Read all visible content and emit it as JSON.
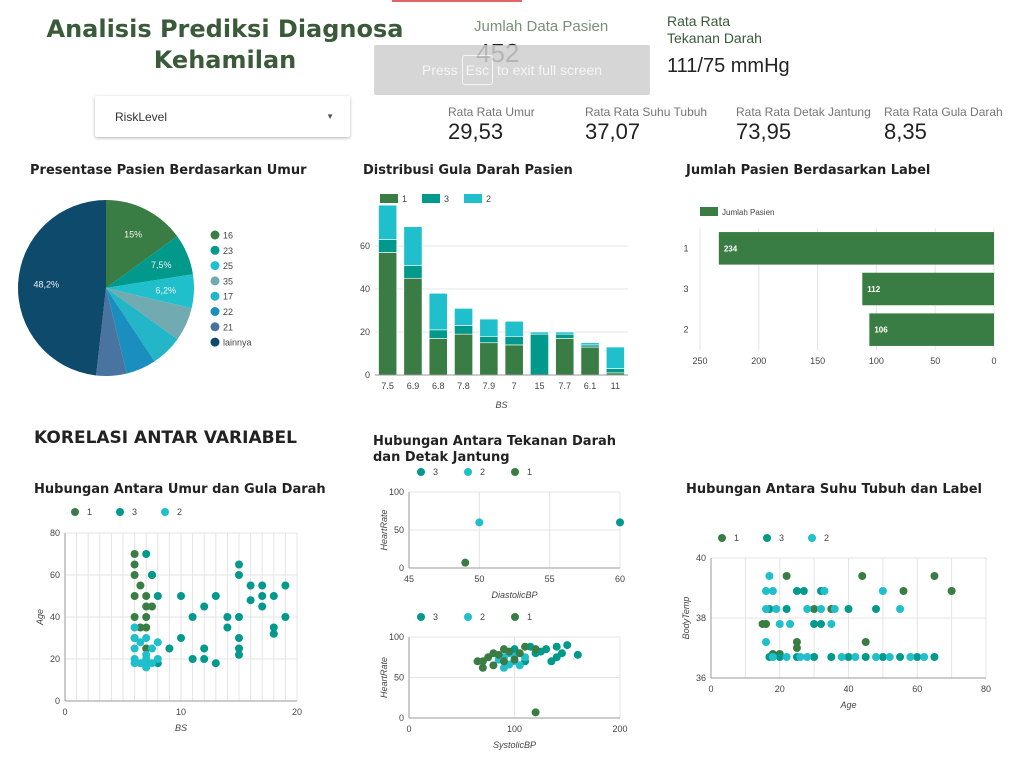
{
  "header": {
    "title": "Analisis Prediksi Diagnosa Kehamilan",
    "esc_overlay": {
      "press": "Press",
      "key": "Esc",
      "rest": "to exit full screen"
    },
    "dropdown": {
      "value": "RiskLevel"
    }
  },
  "scorecards": [
    {
      "label": "Jumlah Data Pasien",
      "value": "452"
    },
    {
      "label": "Rata Rata Tekanan Darah",
      "value": "111/75 mmHg"
    },
    {
      "label": "Rata Rata Umur",
      "value": "29,53"
    },
    {
      "label": "Rata Rata Suhu Tubuh",
      "value": "37,07"
    },
    {
      "label": "Rata Rata Detak Jantung",
      "value": "73,95"
    },
    {
      "label": "Rata Rata Gula Darah",
      "value": "8,35"
    }
  ],
  "sections": {
    "korelasi": "KORELASI ANTAR VARIABEL"
  },
  "colors": {
    "green": "#3a7d44",
    "teal": "#00998c",
    "cyan": "#1fbfcc",
    "title": "#3a5a3a"
  },
  "chart_data": [
    {
      "id": "pie_umur",
      "type": "pie",
      "title": "Presentase Pasien Berdasarkan Umur",
      "legend": [
        "16",
        "23",
        "25",
        "35",
        "17",
        "22",
        "21",
        "lainnya"
      ],
      "values": [
        15,
        7.5,
        6.2,
        6.2,
        5.8,
        5.5,
        5.6,
        48.2
      ],
      "labels_shown": [
        "15%",
        "7,5%",
        "6,2%",
        "",
        "",
        "",
        "",
        "48,2%"
      ],
      "colors": [
        "#3a7d44",
        "#00998c",
        "#1fbfcc",
        "#71aab0",
        "#22b6c8",
        "#1a8fbf",
        "#4a74a0",
        "#0d4a6b"
      ]
    },
    {
      "id": "bar_gula",
      "type": "bar",
      "title": "Distribusi Gula Darah Pasien",
      "xlabel": "BS",
      "ylabel": "",
      "categories": [
        "7.5",
        "6.9",
        "6.8",
        "7.8",
        "7.9",
        "7",
        "15",
        "7.7",
        "6.1",
        "11"
      ],
      "ylim": [
        0,
        80
      ],
      "yticks": [
        0,
        20,
        40,
        60
      ],
      "series": [
        {
          "name": "1",
          "color": "#3a7d44",
          "values": [
            57,
            45,
            17,
            19,
            15,
            14,
            0,
            17,
            13,
            1
          ]
        },
        {
          "name": "3",
          "color": "#00998c",
          "values": [
            6,
            6,
            4,
            4,
            3,
            4,
            19,
            2,
            1,
            2
          ]
        },
        {
          "name": "2",
          "color": "#1fbfcc",
          "values": [
            16,
            18,
            17,
            8,
            8,
            7,
            1,
            1,
            1,
            10
          ]
        }
      ]
    },
    {
      "id": "hbar_label",
      "type": "bar",
      "title": "Jumlah Pasien Berdasarkan Label",
      "legend": [
        "Jumlah Pasien"
      ],
      "categories": [
        "1",
        "3",
        "2"
      ],
      "values": [
        234,
        112,
        106
      ],
      "xlim": [
        0,
        250
      ],
      "xticks": [
        250,
        200,
        150,
        100,
        50,
        0
      ]
    },
    {
      "id": "scatter_umur_gula",
      "type": "scatter",
      "title": "Hubungan Antara Umur dan Gula Darah",
      "legend": [
        "1",
        "3",
        "2"
      ],
      "xlabel": "BS",
      "ylabel": "Age",
      "xlim": [
        0,
        20
      ],
      "ylim": [
        0,
        80
      ],
      "xticks": [
        0,
        10,
        20
      ],
      "yticks": [
        0,
        20,
        40,
        60,
        80
      ],
      "series": [
        {
          "name": "1",
          "color": "#3a7d44",
          "points": [
            [
              6,
              70
            ],
            [
              6,
              65
            ],
            [
              6,
              60
            ],
            [
              6.5,
              55
            ],
            [
              6,
              50
            ],
            [
              7,
              50
            ],
            [
              7,
              45
            ],
            [
              6,
              40
            ],
            [
              7.5,
              45
            ],
            [
              7,
              35
            ],
            [
              6,
              30
            ],
            [
              7,
              25
            ],
            [
              7.5,
              60
            ],
            [
              6.5,
              35
            ],
            [
              7,
              40
            ]
          ]
        },
        {
          "name": "3",
          "color": "#00998c",
          "points": [
            [
              7.5,
              60
            ],
            [
              8,
              50
            ],
            [
              10,
              50
            ],
            [
              11,
              40
            ],
            [
              12,
              45
            ],
            [
              13,
              50
            ],
            [
              15,
              60
            ],
            [
              15,
              65
            ],
            [
              16,
              55
            ],
            [
              17,
              50
            ],
            [
              18,
              50
            ],
            [
              19,
              55
            ],
            [
              17,
              45
            ],
            [
              19,
              40
            ],
            [
              18,
              35
            ],
            [
              15,
              40
            ],
            [
              15,
              30
            ],
            [
              15,
              25
            ],
            [
              15,
              22
            ],
            [
              12,
              25
            ],
            [
              12,
              20
            ],
            [
              10,
              30
            ],
            [
              9,
              25
            ],
            [
              8,
              18
            ],
            [
              11,
              20
            ],
            [
              13,
              18
            ],
            [
              16,
              48
            ],
            [
              18,
              32
            ],
            [
              17,
              55
            ],
            [
              14,
              40
            ],
            [
              14,
              35
            ],
            [
              7,
              70
            ]
          ]
        },
        {
          "name": "2",
          "color": "#1fbfcc",
          "points": [
            [
              6,
              20
            ],
            [
              6,
              25
            ],
            [
              6,
              30
            ],
            [
              6.5,
              18
            ],
            [
              7,
              16
            ],
            [
              7,
              20
            ],
            [
              7,
              22
            ],
            [
              7.5,
              25
            ],
            [
              8,
              20
            ],
            [
              6,
              35
            ],
            [
              7,
              30
            ],
            [
              8,
              28
            ],
            [
              6,
              18
            ],
            [
              7.5,
              18
            ],
            [
              6.5,
              28
            ],
            [
              7,
              17
            ]
          ]
        }
      ]
    },
    {
      "id": "scatter_tekanan_detak",
      "type": "scatter",
      "title": "Hubungan Antara Tekanan Darah dan Detak Jantung",
      "legend": [
        "3",
        "2",
        "1"
      ],
      "xlabel": "DiastolicBP",
      "ylabel": "HeartRate",
      "xlim": [
        45,
        60
      ],
      "ylim": [
        0,
        100
      ],
      "xticks": [
        45,
        50,
        55,
        60
      ],
      "yticks": [
        0,
        50,
        100
      ],
      "series": [
        {
          "name": "3",
          "color": "#00998c",
          "points": [
            [
              60,
              60
            ]
          ]
        },
        {
          "name": "2",
          "color": "#1fbfcc",
          "points": [
            [
              50,
              60
            ]
          ]
        },
        {
          "name": "1",
          "color": "#3a7d44",
          "points": [
            [
              49,
              7
            ]
          ]
        }
      ]
    },
    {
      "id": "scatter_sistol_detak",
      "type": "scatter",
      "legend": [
        "3",
        "2",
        "1"
      ],
      "xlabel": "SystolicBP",
      "ylabel": "HeartRate",
      "xlim": [
        0,
        200
      ],
      "ylim": [
        0,
        100
      ],
      "xticks": [
        0,
        100,
        200
      ],
      "yticks": [
        0,
        50,
        100
      ],
      "series": [
        {
          "name": "3",
          "color": "#00998c",
          "points": [
            [
              140,
              88
            ],
            [
              130,
              85
            ],
            [
              120,
              80
            ],
            [
              150,
              90
            ],
            [
              160,
              78
            ],
            [
              140,
              75
            ],
            [
              110,
              70
            ],
            [
              125,
              82
            ],
            [
              135,
              70
            ],
            [
              115,
              88
            ],
            [
              100,
              85
            ],
            [
              145,
              80
            ]
          ]
        },
        {
          "name": "2",
          "color": "#1fbfcc",
          "points": [
            [
              90,
              75
            ],
            [
              100,
              70
            ],
            [
              95,
              80
            ],
            [
              105,
              65
            ],
            [
              90,
              62
            ],
            [
              100,
              76
            ],
            [
              110,
              75
            ],
            [
              85,
              72
            ],
            [
              95,
              66
            ]
          ]
        },
        {
          "name": "1",
          "color": "#3a7d44",
          "points": [
            [
              70,
              70
            ],
            [
              75,
              75
            ],
            [
              80,
              80
            ],
            [
              85,
              78
            ],
            [
              90,
              85
            ],
            [
              100,
              72
            ],
            [
              105,
              80
            ],
            [
              110,
              88
            ],
            [
              120,
              85
            ],
            [
              80,
              65
            ],
            [
              70,
              62
            ],
            [
              65,
              70
            ],
            [
              120,
              7
            ],
            [
              90,
              70
            ],
            [
              95,
              82
            ]
          ]
        }
      ]
    },
    {
      "id": "scatter_suhu_label",
      "type": "scatter",
      "title": "Hubungan Antara Suhu Tubuh dan Label",
      "legend": [
        "1",
        "3",
        "2"
      ],
      "xlabel": "Age",
      "ylabel": "BodyTemp",
      "xlim": [
        0,
        80
      ],
      "ylim": [
        36,
        40
      ],
      "xticks": [
        0,
        20,
        40,
        60,
        80
      ],
      "yticks": [
        36,
        38,
        40
      ],
      "series": [
        {
          "name": "1",
          "color": "#3a7d44",
          "points": [
            [
              22,
              39.4
            ],
            [
              44,
              39.4
            ],
            [
              56,
              38.9
            ],
            [
              65,
              39.4
            ],
            [
              70,
              38.9
            ],
            [
              16,
              37.8
            ],
            [
              15,
              37.8
            ],
            [
              18,
              36.8
            ],
            [
              20,
              36.8
            ],
            [
              25,
              37.0
            ],
            [
              25,
              37.2
            ],
            [
              30,
              38.3
            ],
            [
              35,
              38.3
            ],
            [
              45,
              37.2
            ]
          ]
        },
        {
          "name": "3",
          "color": "#00998c",
          "points": [
            [
              17,
              38.3
            ],
            [
              22,
              38.3
            ],
            [
              27,
              38.9
            ],
            [
              32,
              38.9
            ],
            [
              40,
              38.3
            ],
            [
              48,
              38.3
            ],
            [
              25,
              38.9
            ],
            [
              30,
              37.8
            ],
            [
              35,
              36.7
            ],
            [
              40,
              36.7
            ],
            [
              45,
              36.7
            ],
            [
              50,
              36.7
            ],
            [
              55,
              36.7
            ],
            [
              60,
              36.7
            ],
            [
              65,
              36.7
            ],
            [
              17,
              36.7
            ],
            [
              20,
              36.7
            ],
            [
              25,
              36.7
            ],
            [
              30,
              36.7
            ],
            [
              32,
              37.8
            ]
          ]
        },
        {
          "name": "2",
          "color": "#1fbfcc",
          "points": [
            [
              17,
              39.4
            ],
            [
              16,
              38.9
            ],
            [
              18,
              38.9
            ],
            [
              19,
              38.3
            ],
            [
              16,
              38.3
            ],
            [
              28,
              38.3
            ],
            [
              32,
              38.3
            ],
            [
              33,
              38.9
            ],
            [
              50,
              38.9
            ],
            [
              55,
              38.3
            ],
            [
              35,
              37.8
            ],
            [
              20,
              37.8
            ],
            [
              16,
              37.2
            ],
            [
              18,
              36.7
            ],
            [
              22,
              36.7
            ],
            [
              26,
              36.7
            ],
            [
              28,
              36.7
            ],
            [
              38,
              36.7
            ],
            [
              42,
              36.7
            ],
            [
              48,
              36.7
            ],
            [
              52,
              36.7
            ],
            [
              58,
              36.7
            ],
            [
              62,
              36.7
            ],
            [
              36,
              38.3
            ],
            [
              23,
              37.8
            ]
          ]
        }
      ]
    }
  ]
}
